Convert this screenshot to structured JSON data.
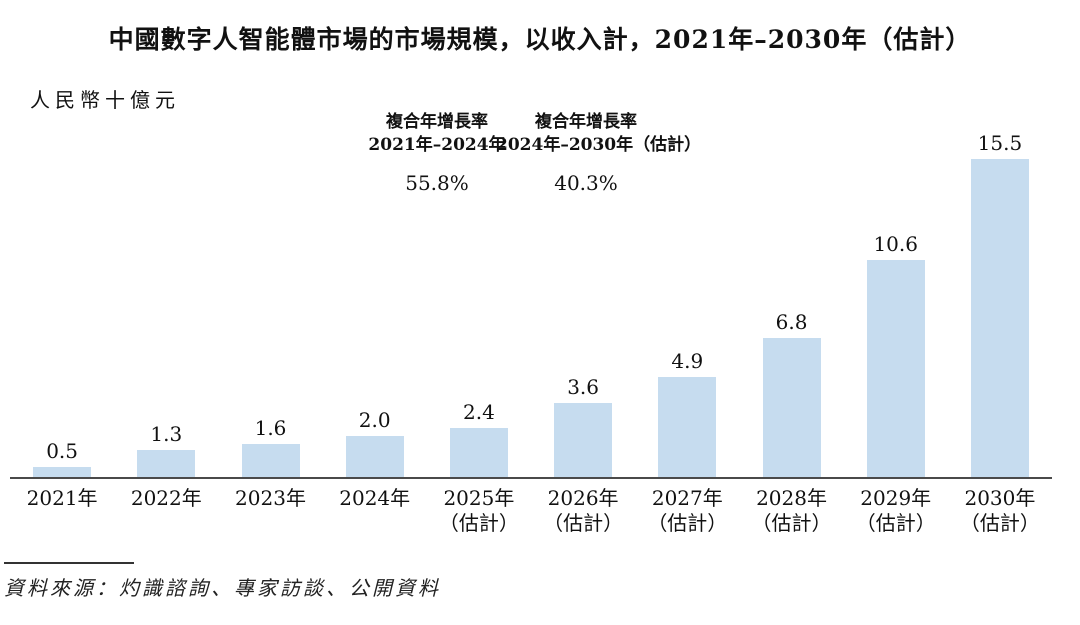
{
  "title": "中國數字人智能體市場的市場規模，以收入計，2021年–2030年（估計）",
  "cagr_annotations": [
    {
      "label_line1": "複合年增長率",
      "label_line2": "2021年–2024年",
      "value": "55.8%"
    },
    {
      "label_line1": "複合年增長率",
      "label_line2": "2024年–2030年（估計）",
      "value": "40.3%"
    }
  ],
  "chart_data": {
    "type": "bar",
    "title": "中國數字人智能體市場的市場規模，以收入計，2021年–2030年（估計）",
    "unit_label": "人民幣十億元",
    "ylabel": "人民幣十億元",
    "xlabel": "",
    "categories": [
      {
        "year": "2021年",
        "note": ""
      },
      {
        "year": "2022年",
        "note": ""
      },
      {
        "year": "2023年",
        "note": ""
      },
      {
        "year": "2024年",
        "note": ""
      },
      {
        "year": "2025年",
        "note": "（估計）"
      },
      {
        "year": "2026年",
        "note": "（估計）"
      },
      {
        "year": "2027年",
        "note": "（估計）"
      },
      {
        "year": "2028年",
        "note": "（估計）"
      },
      {
        "year": "2029年",
        "note": "（估計）"
      },
      {
        "year": "2030年",
        "note": "（估計）"
      }
    ],
    "values": [
      0.5,
      1.3,
      1.6,
      2.0,
      2.4,
      3.6,
      4.9,
      6.8,
      10.6,
      15.5
    ],
    "ylim": [
      0,
      16
    ],
    "grid": false,
    "legend": "none",
    "bar_color": "#c6dcef",
    "axis_color": "#4a4a4a"
  },
  "source": {
    "text": "資料來源：灼識諮詢、專家訪談、公開資料"
  }
}
